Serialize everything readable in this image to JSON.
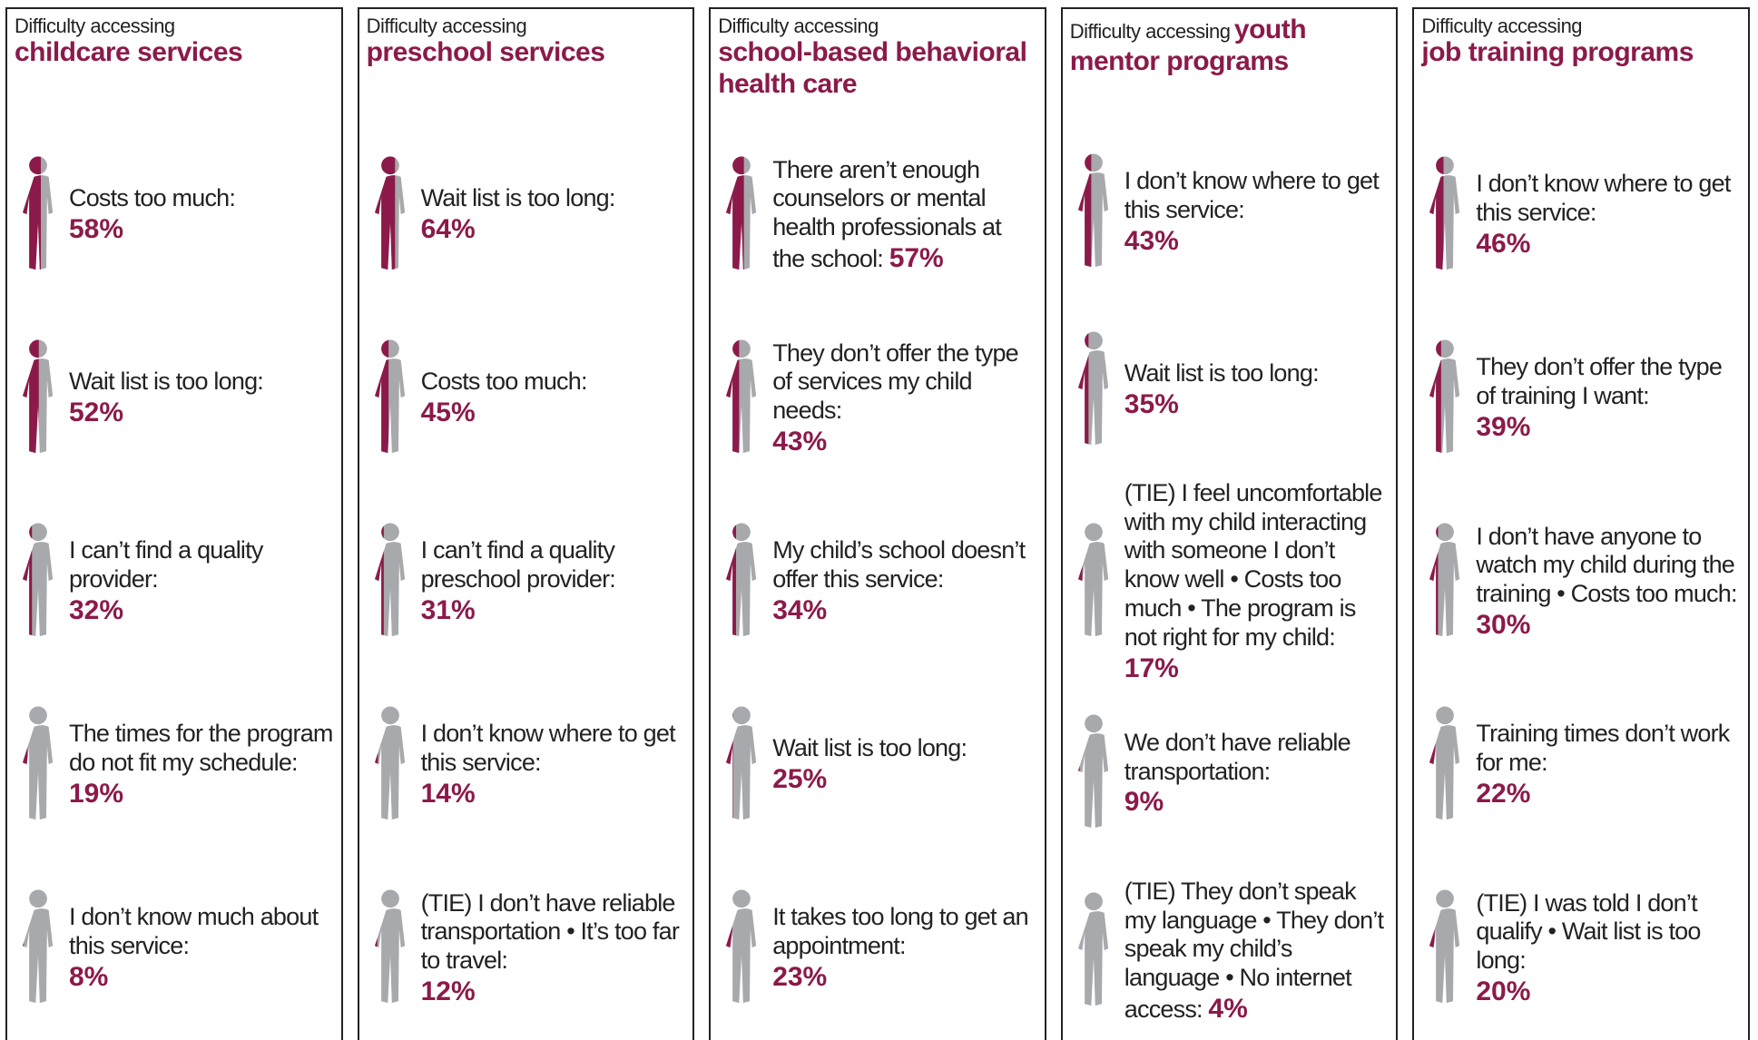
{
  "panels": [
    {
      "prefix": "Difficulty accessing",
      "topic": "childcare services",
      "items": [
        {
          "label": "Costs too much:",
          "value": 58,
          "value_label": "58%"
        },
        {
          "label": "Wait list is too long:",
          "value": 52,
          "value_label": "52%"
        },
        {
          "label": "I can’t find a quality provider:",
          "value": 32,
          "value_label": "32%"
        },
        {
          "label": "The times for the program do not fit my schedule:",
          "value": 19,
          "value_label": "19%"
        },
        {
          "label": "I don’t know much about this service:",
          "value": 8,
          "value_label": "8%"
        }
      ]
    },
    {
      "prefix": "Difficulty accessing",
      "topic": "preschool services",
      "items": [
        {
          "label": "Wait list is too long:",
          "value": 64,
          "value_label": "64%"
        },
        {
          "label": "Costs too much:",
          "value": 45,
          "value_label": "45%"
        },
        {
          "label": "I can’t find a quality preschool provider:",
          "value": 31,
          "value_label": "31%"
        },
        {
          "label": "I don’t know where to get this service:",
          "value": 14,
          "value_label": "14%"
        },
        {
          "label": "(TIE) I don’t have reliable transportation • It’s too far to travel:",
          "value": 12,
          "value_label": "12%"
        }
      ]
    },
    {
      "prefix": "Difficulty accessing",
      "topic": "school-based behavioral health care",
      "items": [
        {
          "label": "There aren’t enough counselors or mental health professionals at the school:",
          "value": 57,
          "value_label": "57%"
        },
        {
          "label": "They don’t offer the type of services my child needs:",
          "value": 43,
          "value_label": "43%"
        },
        {
          "label": "My child’s school doesn’t offer this service:",
          "value": 34,
          "value_label": "34%"
        },
        {
          "label": "Wait list is too long:",
          "value": 25,
          "value_label": "25%"
        },
        {
          "label": "It takes too long to get an appointment:",
          "value": 23,
          "value_label": "23%"
        }
      ]
    },
    {
      "prefix": "Difficulty accessing",
      "topic": "youth mentor programs",
      "items": [
        {
          "label": "I don’t know where to get this service:",
          "value": 43,
          "value_label": "43%"
        },
        {
          "label": "Wait list is too long:",
          "value": 35,
          "value_label": "35%"
        },
        {
          "label": "(TIE) I feel uncomfortable with my child interacting with someone I don’t know well • Costs too much • The program is not right for my child:",
          "value": 17,
          "value_label": "17%"
        },
        {
          "label": "We don’t have reliable transportation:",
          "value": 9,
          "value_label": "9%"
        },
        {
          "label": "(TIE) They don’t speak my language • They don’t speak my child’s language • No internet access:",
          "value": 4,
          "value_label": "4%"
        }
      ]
    },
    {
      "prefix": "Difficulty accessing",
      "topic": "job training programs",
      "items": [
        {
          "label": "I don’t know where to get this service:",
          "value": 46,
          "value_label": "46%"
        },
        {
          "label": "They don’t offer the type of training I want:",
          "value": 39,
          "value_label": "39%"
        },
        {
          "label": "I don’t have anyone to watch my child during the training • Costs too much:",
          "value": 30,
          "value_label": "30%"
        },
        {
          "label": "Training times don’t work for me:",
          "value": 22,
          "value_label": "22%"
        },
        {
          "label": "(TIE) I was told I don’t qualify • Wait list is too long:",
          "value": 20,
          "value_label": "20%"
        }
      ]
    }
  ]
}
